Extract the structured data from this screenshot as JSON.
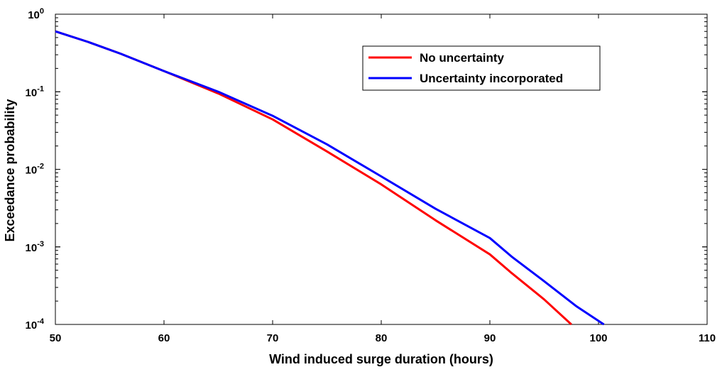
{
  "chart_data": {
    "type": "line",
    "title": "",
    "xlabel": "Wind induced surge duration (hours)",
    "ylabel": "Exceedance probability",
    "xlim": [
      50,
      110
    ],
    "ylim": [
      0.0001,
      1
    ],
    "yscale": "log",
    "x_ticks": [
      {
        "value": 50,
        "label": "50"
      },
      {
        "value": 60,
        "label": "60"
      },
      {
        "value": 70,
        "label": "70"
      },
      {
        "value": 80,
        "label": "80"
      },
      {
        "value": 90,
        "label": "90"
      },
      {
        "value": 100,
        "label": "100"
      },
      {
        "value": 110,
        "label": "110"
      }
    ],
    "y_ticks": [
      {
        "value": 1,
        "base": "10",
        "exp": "0"
      },
      {
        "value": 0.1,
        "base": "10",
        "exp": "-1"
      },
      {
        "value": 0.01,
        "base": "10",
        "exp": "-2"
      },
      {
        "value": 0.001,
        "base": "10",
        "exp": "-3"
      },
      {
        "value": 0.0001,
        "base": "10",
        "exp": "-4"
      }
    ],
    "legend_position": "top-right",
    "series": [
      {
        "name": "No uncertainty",
        "color": "#ff0000",
        "x": [
          50,
          53,
          56,
          60,
          65,
          70,
          75,
          80,
          85,
          90,
          92,
          95,
          97.5
        ],
        "y": [
          0.6,
          0.44,
          0.31,
          0.185,
          0.095,
          0.044,
          0.017,
          0.0064,
          0.0022,
          0.0008,
          0.00046,
          0.00021,
          0.0001
        ]
      },
      {
        "name": "Uncertainty incorporated",
        "color": "#0000ff",
        "x": [
          50,
          53,
          56,
          60,
          65,
          70,
          75,
          80,
          85,
          90,
          92,
          95,
          98,
          100.5
        ],
        "y": [
          0.6,
          0.44,
          0.31,
          0.185,
          0.1,
          0.049,
          0.021,
          0.0081,
          0.0031,
          0.0013,
          0.00075,
          0.00036,
          0.00017,
          0.0001
        ]
      }
    ]
  }
}
